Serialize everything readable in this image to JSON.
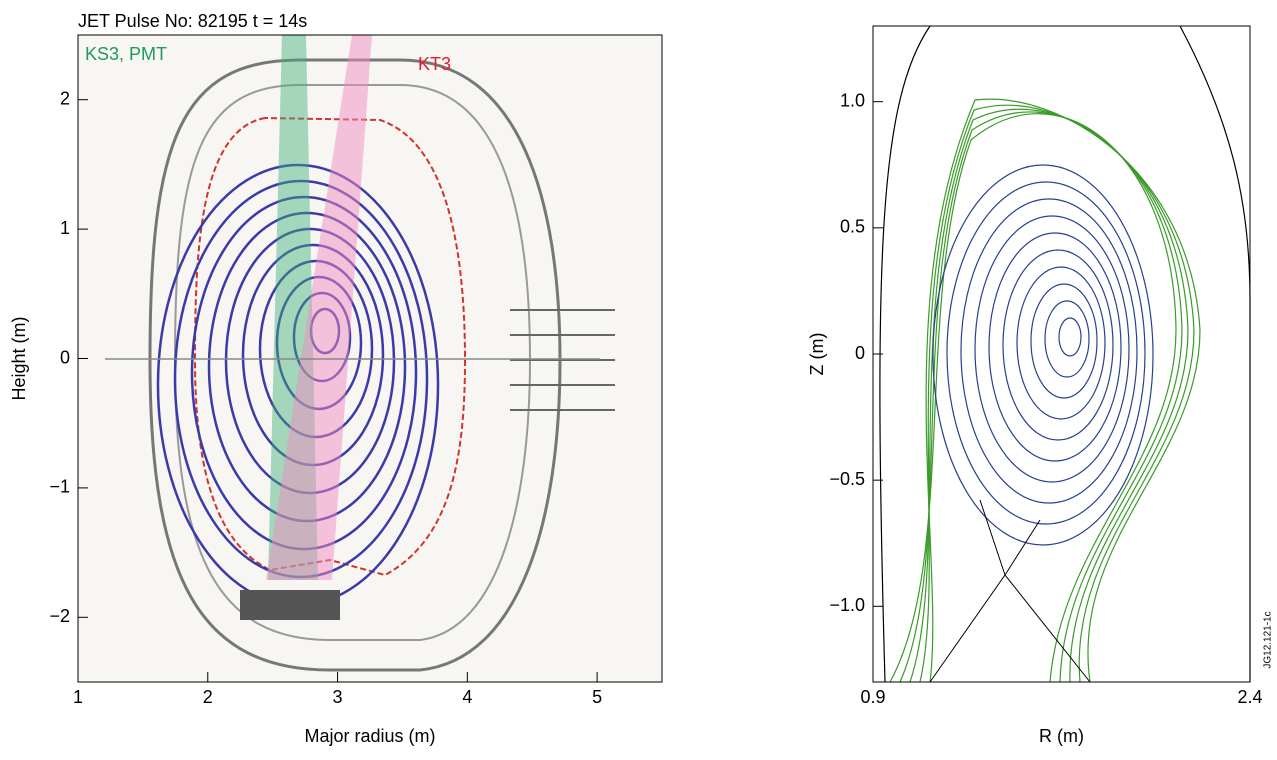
{
  "chart_data": [
    {
      "type": "contour",
      "title": "JET Pulse No: 82195 t = 14s",
      "x_label": "Major radius (m)",
      "y_label": "Height (m)",
      "xlim": [
        1,
        5.5
      ],
      "xticks": [
        1,
        2,
        3,
        4,
        5
      ],
      "ylim": [
        -2.5,
        2.5
      ],
      "yticks": [
        {
          "value": -2,
          "label": "−2"
        },
        {
          "value": -1,
          "label": "−1"
        },
        0,
        1,
        2
      ],
      "annotations": [
        {
          "text": "KS3, PMT",
          "color": "#1e9a5c"
        },
        {
          "text": "KT3",
          "color": "#e0202a"
        }
      ]
    },
    {
      "type": "contour",
      "x_label": "R (m)",
      "y_label": "Z (m)",
      "xlim": [
        0.9,
        2.4
      ],
      "xticks": [
        0.9,
        2.4
      ],
      "ylim": [
        -1.3,
        1.3
      ],
      "yticks": [
        {
          "value": -1,
          "label": "−1.0"
        },
        {
          "value": -0.5,
          "label": "−0.5"
        },
        0,
        0.5,
        {
          "value": 1,
          "label": "1.0"
        }
      ],
      "annotations": [
        {
          "text": "JG12.121-1c",
          "color": "#000000"
        }
      ]
    }
  ]
}
